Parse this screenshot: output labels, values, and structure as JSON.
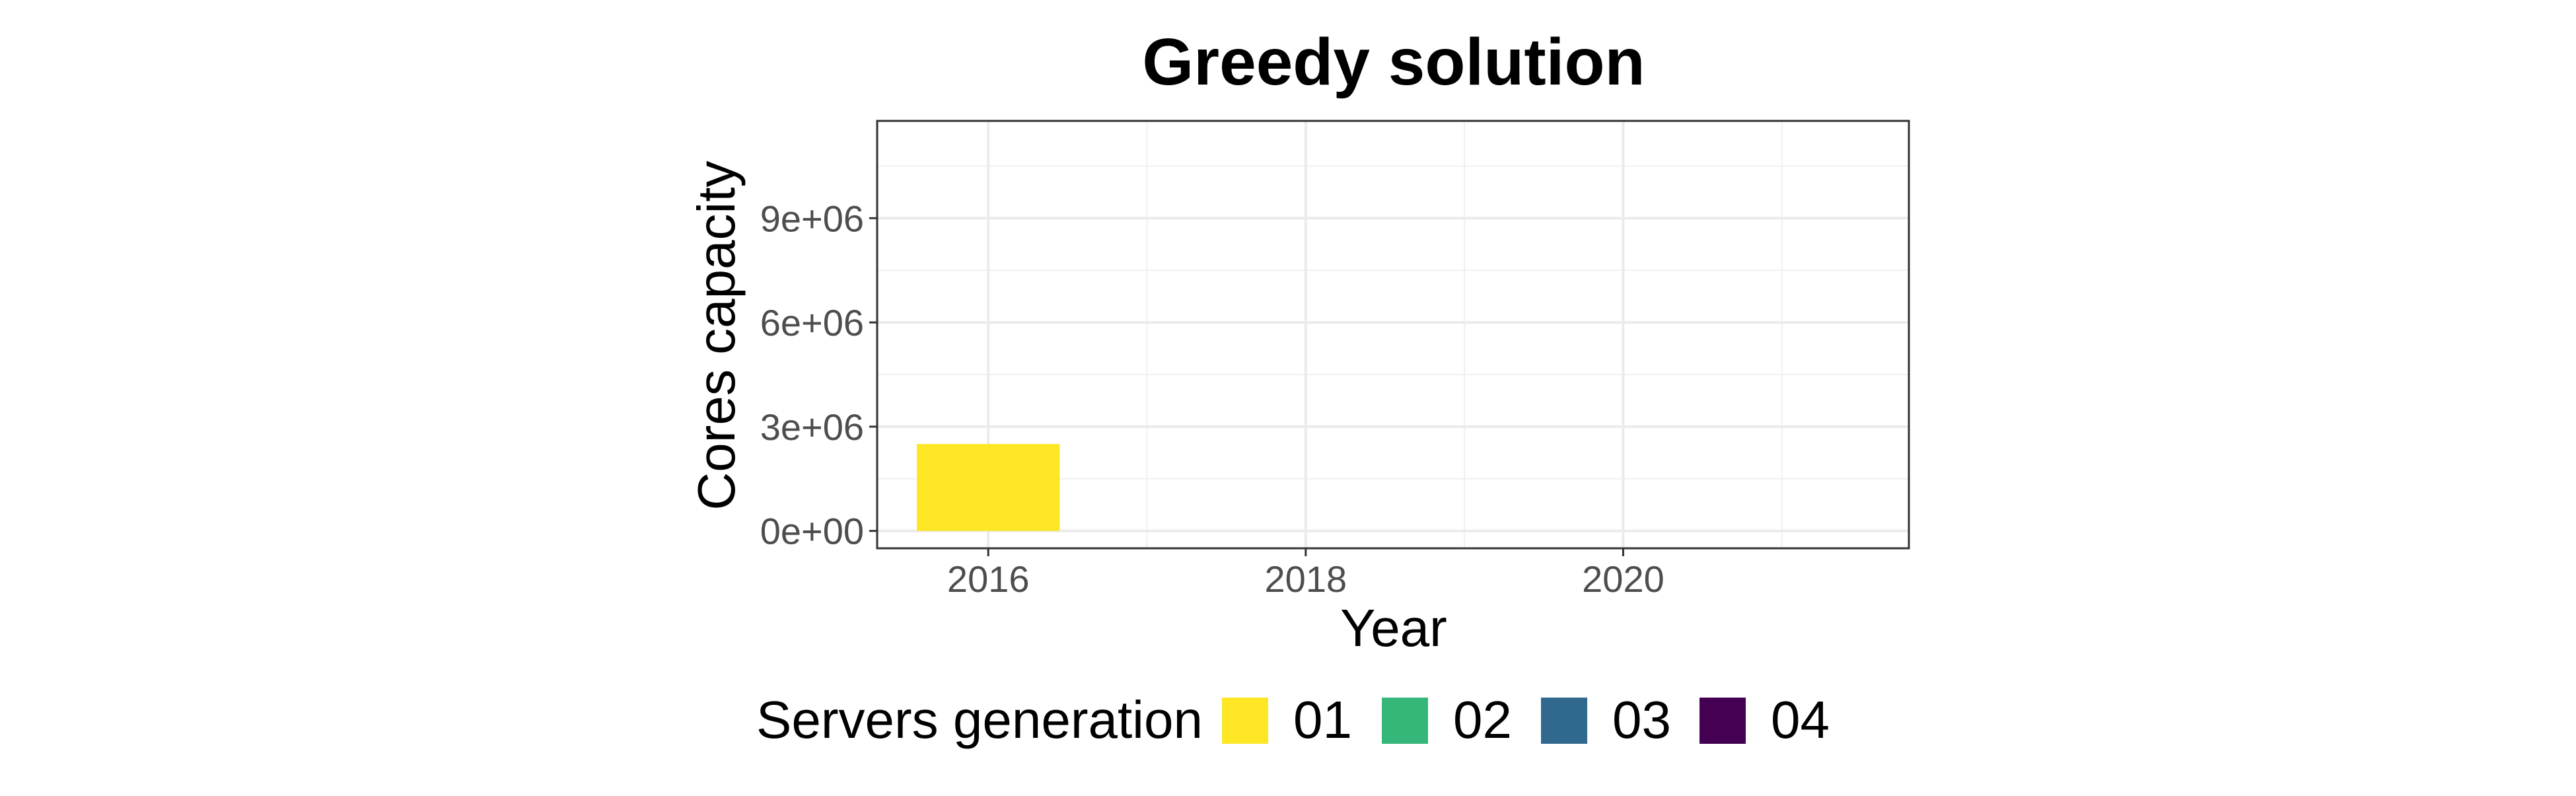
{
  "chart_data": {
    "type": "bar",
    "title": "Greedy solution",
    "xlabel": "Year",
    "ylabel": "Cores capacity",
    "x_ticks": [
      "2016",
      "2018",
      "2020"
    ],
    "y_ticks": [
      "0e+00",
      "3e+06",
      "6e+06",
      "9e+06"
    ],
    "y_tick_values": [
      0,
      3000000,
      6000000,
      9000000
    ],
    "xlim": [
      2015.3,
      2021.8
    ],
    "ylim": [
      -500000,
      11800000
    ],
    "grid": true,
    "legend_position": "bottom",
    "legend_title": "Servers generation",
    "series": [
      {
        "name": "01",
        "color": "#FDE725",
        "x": [
          2016
        ],
        "values": [
          2500000
        ]
      },
      {
        "name": "02",
        "color": "#35B779",
        "x": [],
        "values": []
      },
      {
        "name": "03",
        "color": "#31688E",
        "x": [],
        "values": []
      },
      {
        "name": "04",
        "color": "#440154",
        "x": [],
        "values": []
      }
    ]
  }
}
